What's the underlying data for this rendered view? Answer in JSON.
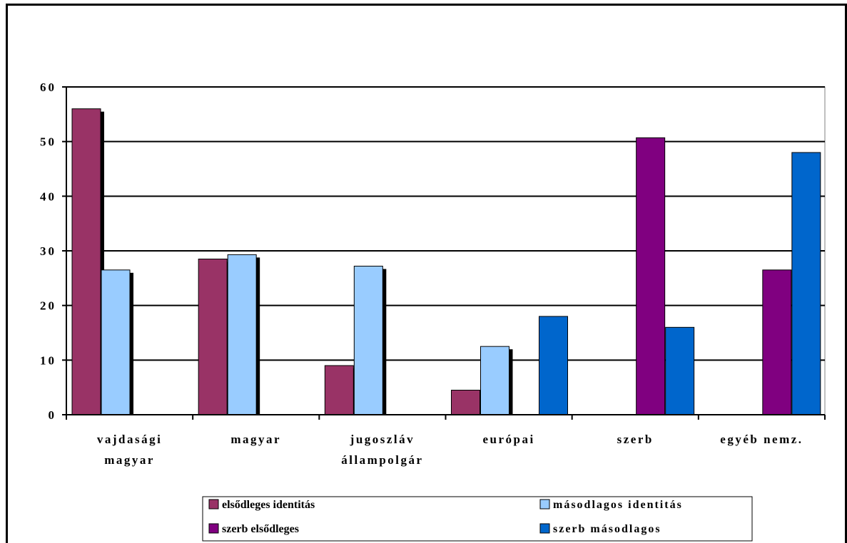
{
  "chart_data": {
    "type": "bar",
    "title": "",
    "xlabel": "",
    "ylabel": "",
    "ylim": [
      0,
      60
    ],
    "yticks": [
      0,
      10,
      20,
      30,
      40,
      50,
      60
    ],
    "grid": true,
    "legend_position": "bottom",
    "categories": [
      [
        "vajdasági",
        "magyar"
      ],
      [
        "magyar"
      ],
      [
        "jugoszláv",
        "állampolgár"
      ],
      [
        "európai"
      ],
      [
        "szerb"
      ],
      [
        "egyéb nemz."
      ]
    ],
    "series": [
      {
        "name": "elsődleges identitás",
        "color": "#993366",
        "values": [
          56,
          28.5,
          9,
          4.5,
          null,
          null
        ]
      },
      {
        "name": "másodlagos identitás",
        "color": "#99ccff",
        "values": [
          26.5,
          29.3,
          27.2,
          12.5,
          null,
          null
        ]
      },
      {
        "name": "szerb elsődleges",
        "color": "#800080",
        "values": [
          null,
          null,
          null,
          null,
          50.7,
          26.5
        ]
      },
      {
        "name": "szerb másodlagos",
        "color": "#0066cc",
        "values": [
          null,
          null,
          null,
          18,
          16,
          48
        ]
      }
    ]
  }
}
